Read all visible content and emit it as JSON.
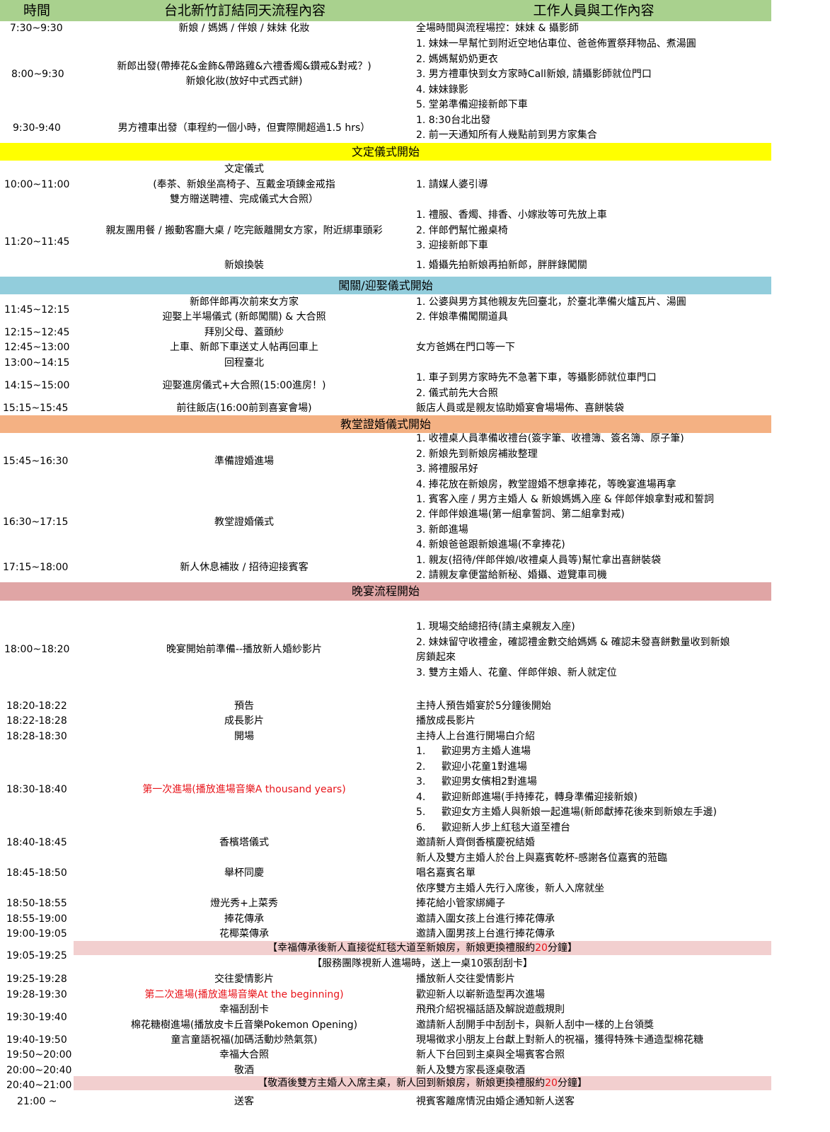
{
  "header": {
    "col_time": "時間",
    "col_flow": "台北新竹訂結同天流程內容",
    "col_staff": "工作人員與工作內容"
  },
  "rows": {
    "r1": {
      "time": "7:30~9:30",
      "flow": "新娘 / 媽媽 / 伴娘 / 妹妹 化妝",
      "staff": "全場時間與流程場控：妹妹 & 攝影師"
    },
    "r2": {
      "time": "8:00~9:30",
      "flow1": "新郎出發(帶捧花&金飾&帶路雞&六禮香燭&鑽戒&對戒？)",
      "flow2": "新娘化妝(放好中式西式餅)",
      "staff": [
        "1. 妹妹一早幫忙到附近空地佔車位、爸爸佈置祭拜物品、煮湯圓",
        "2. 媽媽幫奶奶更衣",
        "3. 男方禮車快到女方家時Call新娘, 請攝影師就位門口",
        "4. 妹妹錄影",
        "5. 堂弟準備迎接新郎下車"
      ]
    },
    "r3": {
      "time": "9:30-9:40",
      "flow": "男方禮車出發（車程約一個小時，但實際開超過1.5 hrs）",
      "staff": [
        "1. 8:30台北出發",
        "2. 前一天通知所有人幾點前到男方家集合"
      ]
    },
    "r4": {
      "time": "10:00~11:00",
      "flow": [
        "文定儀式",
        "(奉茶、新娘坐高椅子、互戴金項鍊金戒指",
        "雙方贈送聘禮、完成儀式大合照）"
      ],
      "staff": "1. 請媒人婆引導"
    },
    "r5": {
      "time": "11:20~11:45",
      "flow": "親友團用餐 / 搬動客廳大桌 / 吃完飯離開女方家，附近綁車頭彩",
      "flow2": "新娘換裝",
      "staff": [
        "1. 禮服、香燭、排香、小嫁妝等可先放上車",
        "2. 伴郎們幫忙搬桌椅",
        "3. 迎接新郎下車"
      ],
      "staff2": "1. 婚攝先拍新娘再拍新郎，胖胖錄闖關"
    },
    "r6": {
      "time": "11:45~12:15",
      "flow": [
        "新郎伴郎再次前來女方家",
        "迎娶上半場儀式 (新郎闖關) & 大合照"
      ],
      "staff": [
        "1. 公婆與男方其他親友先回臺北，於臺北準備火爐瓦片、湯圓",
        "2. 伴娘準備闖關道具"
      ]
    },
    "r7": {
      "time": "12:15~12:45",
      "flow": "拜別父母、蓋頭紗"
    },
    "r8": {
      "time": "12:45~13:00",
      "flow": "上車、新郎下車送丈人帖再回車上",
      "staff": "女方爸媽在門口等一下"
    },
    "r9": {
      "time": "13:00~14:15",
      "flow": "回程臺北"
    },
    "r10": {
      "time": "14:15~15:00",
      "flow": "迎娶進房儀式+大合照(15:00進房！)",
      "staff": [
        "1. 車子到男方家時先不急著下車，等攝影師就位車門口",
        "2. 儀式前先大合照"
      ]
    },
    "r11": {
      "time": "15:15~15:45",
      "flow": "前往飯店(16:00前到喜宴會場)",
      "staff": "飯店人員或是親友協助婚宴會場場佈、喜餅裝袋"
    },
    "r12": {
      "time": "15:45~16:30",
      "flow": "準備證婚進場",
      "staff": [
        "1. 收禮桌人員準備收禮台(簽字筆、收禮簿、簽名簿、原子筆)",
        "2. 新娘先到新娘房補妝整理",
        "3. 將禮服吊好",
        "4. 捧花放在新娘房，教堂證婚不想拿捧花，等晚宴進場再拿"
      ]
    },
    "r13": {
      "time": "16:30~17:15",
      "flow": "教堂證婚儀式",
      "staff": [
        "1. 賓客入座 / 男方主婚人 & 新娘媽媽入座 & 伴郎伴娘拿對戒和誓詞",
        "2. 伴郎伴娘進場(第一組拿誓詞、第二組拿對戒)",
        "3. 新郎進場",
        "4. 新娘爸爸跟新娘進場(不拿捧花)"
      ]
    },
    "r14": {
      "time": "17:15~18:00",
      "flow": "新人休息補妝 / 招待迎接賓客",
      "staff": [
        "1. 親友(招待/伴郎伴娘/收禮桌人員等)幫忙拿出喜餅裝袋",
        "2. 請親友拿便當給新秘、婚攝、遊覽車司機"
      ]
    },
    "r15": {
      "time": "18:00~18:20",
      "flow": "晚宴開始前準備--播放新人婚紗影片",
      "staff": [
        "1. 現場交給總招待(請主桌親友入座)",
        "2. 妹妹留守收禮金，確認禮金數交給媽媽 & 確認未發喜餅數量收到新娘",
        "房鎖起來",
        "3. 雙方主婚人、花童、伴郎伴娘、新人就定位"
      ]
    },
    "r16": {
      "time": "18:20-18:22",
      "flow": "預告",
      "staff": "主持人預告婚宴於5分鐘後開始"
    },
    "r17": {
      "time": "18:22-18:28",
      "flow": "成長影片",
      "staff": "播放成長影片"
    },
    "r18": {
      "time": "18:28-18:30",
      "flow": "開場",
      "staff": "主持人上台進行開場白介紹"
    },
    "r19": {
      "time": "18:30-18:40",
      "flow": "第一次進場(播放進場音樂A thousand years)",
      "staff": [
        {
          "n": "1.",
          "t": "歡迎男方主婚人進場"
        },
        {
          "n": "2.",
          "t": "歡迎小花童1對進場"
        },
        {
          "n": "3.",
          "t": "歡迎男女儐相2對進場"
        },
        {
          "n": "4.",
          "t": "歡迎新郎進場(手持捧花，轉身準備迎接新娘)"
        },
        {
          "n": "5.",
          "t": "歡迎女方主婚人與新娘一起進場(新郎獻捧花後來到新娘左手邊)"
        },
        {
          "n": "6.",
          "t": "歡迎新人步上紅毯大道至禮台"
        }
      ]
    },
    "r20": {
      "time": "18:40-18:45",
      "flow": "香檳塔儀式",
      "staff": [
        "邀請新人齊倒香檳慶祝結婚",
        "新人及雙方主婚人於台上與嘉賓乾杯-感謝各位嘉賓的蒞臨"
      ]
    },
    "r21": {
      "time": "18:45-18:50",
      "flow": "舉杯同慶",
      "staff": [
        "唱名嘉賓名單",
        "依序雙方主婚人先行入席後，新人入席就坐"
      ]
    },
    "r22": {
      "time": "18:50-18:55",
      "flow": "燈光秀+上菜秀",
      "staff": "捧花給小管家綁繩子"
    },
    "r23": {
      "time": "18:55-19:00",
      "flow": "捧花傳承",
      "staff": "邀請入圍女孩上台進行捧花傳承"
    },
    "r24": {
      "time": "19:00-19:05",
      "flow": "花椰菜傳承",
      "staff": "邀請入圍男孩上台進行捧花傳承"
    },
    "r25": {
      "time": "19:05-19:25",
      "note1_a": "【幸福傳承後新人直接從紅毯大道至新娘房，新娘更換禮服約",
      "note1_b": "20",
      "note1_c": "分鐘】",
      "note2": "【服務團隊視新人進場時，送上一桌10張刮刮卡】"
    },
    "r26": {
      "time": "19:25-19:28",
      "flow": "交往愛情影片",
      "staff": "播放新人交往愛情影片"
    },
    "r27": {
      "time": "19:28-19:30",
      "flow": "第二次進場(播放進場音樂At the beginning)",
      "staff": "歡迎新人以嶄新造型再次進場"
    },
    "r28": {
      "time": "19:30-19:40",
      "flow": [
        "幸福刮刮卡",
        "棉花糖樹進場(播放皮卡丘音樂Pokemon Opening)"
      ],
      "staff": [
        "飛飛介紹祝福話語及解說遊戲規則",
        "邀請新人刮開手中刮刮卡，與新人刮中一樣的上台領獎"
      ]
    },
    "r29": {
      "time": "19:40-19:50",
      "flow": "童言童語祝福(加碼活動炒熱氣氛)",
      "staff": "現場徵求小朋友上台獻上對新人的祝福，獲得特殊卡通造型棉花糖"
    },
    "r30": {
      "time": "19:50~20:00",
      "flow": "幸福大合照",
      "staff": "新人下台回到主桌與全場賓客合照"
    },
    "r31": {
      "time": "20:00~20:40",
      "flow": "敬酒",
      "staff": "新人及雙方家長逐桌敬酒"
    },
    "r32": {
      "time": "20:40~21:00",
      "note_a": "【敬酒後雙方主婚人入席主桌，新人回到新娘房，新娘更換禮服約",
      "note_b": "20",
      "note_c": "分鐘】"
    },
    "r33": {
      "time": "21:00 ~",
      "flow": "送客",
      "staff": "視賓客離席情況由婚企通知新人送客"
    }
  },
  "sections": {
    "engagement": "文定儀式開始",
    "gate": "闖關/迎娶儀式開始",
    "church": "教堂證婚儀式開始",
    "banquet": "晚宴流程開始"
  },
  "colors": {
    "header": "#a9d18e",
    "engagement": "#ffff00",
    "gate": "#92cddc",
    "church": "#f4b183",
    "banquet": "#e0a5a5",
    "note": "#f2cfcf",
    "accent_red": "#e8151b"
  }
}
